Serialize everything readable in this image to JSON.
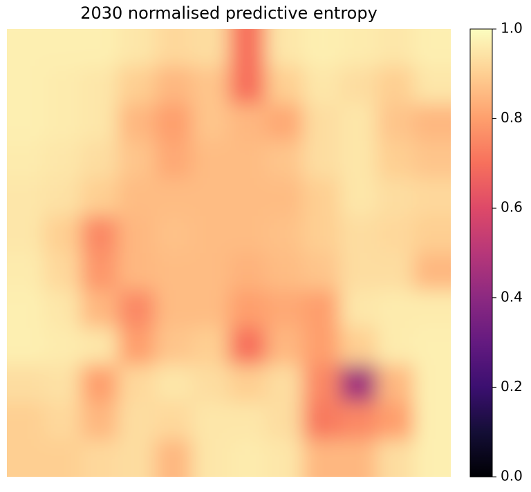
{
  "chart_data": {
    "type": "heatmap",
    "title": "2030 normalised predictive entropy",
    "colormap": "magma",
    "values": [
      [
        0.97,
        0.97,
        0.97,
        0.95,
        0.92,
        0.93,
        0.7,
        0.95,
        0.97,
        0.96,
        0.95,
        0.97
      ],
      [
        0.97,
        0.96,
        0.95,
        0.9,
        0.85,
        0.88,
        0.7,
        0.9,
        0.95,
        0.93,
        0.9,
        0.95
      ],
      [
        0.97,
        0.96,
        0.95,
        0.85,
        0.8,
        0.88,
        0.85,
        0.82,
        0.93,
        0.95,
        0.88,
        0.85
      ],
      [
        0.96,
        0.95,
        0.93,
        0.88,
        0.82,
        0.86,
        0.86,
        0.88,
        0.93,
        0.95,
        0.9,
        0.88
      ],
      [
        0.95,
        0.94,
        0.9,
        0.86,
        0.86,
        0.86,
        0.86,
        0.86,
        0.9,
        0.95,
        0.93,
        0.92
      ],
      [
        0.95,
        0.9,
        0.75,
        0.85,
        0.87,
        0.86,
        0.86,
        0.87,
        0.9,
        0.93,
        0.92,
        0.9
      ],
      [
        0.96,
        0.92,
        0.78,
        0.85,
        0.86,
        0.86,
        0.84,
        0.86,
        0.88,
        0.93,
        0.93,
        0.85
      ],
      [
        0.97,
        0.95,
        0.85,
        0.75,
        0.86,
        0.86,
        0.8,
        0.82,
        0.8,
        0.95,
        0.96,
        0.96
      ],
      [
        0.97,
        0.96,
        0.95,
        0.8,
        0.88,
        0.9,
        0.7,
        0.85,
        0.8,
        0.9,
        0.96,
        0.97
      ],
      [
        0.93,
        0.94,
        0.8,
        0.92,
        0.95,
        0.93,
        0.9,
        0.93,
        0.75,
        0.45,
        0.85,
        0.97
      ],
      [
        0.9,
        0.92,
        0.85,
        0.93,
        0.92,
        0.95,
        0.95,
        0.93,
        0.72,
        0.75,
        0.8,
        0.97
      ],
      [
        0.9,
        0.9,
        0.92,
        0.93,
        0.85,
        0.95,
        0.96,
        0.95,
        0.85,
        0.85,
        0.93,
        0.97
      ]
    ],
    "clim": [
      0,
      1
    ],
    "cticks": [
      {
        "value": 0,
        "label": "0.0"
      },
      0.2,
      0.4,
      0.6,
      0.8,
      {
        "value": 1,
        "label": "1.0"
      }
    ]
  }
}
